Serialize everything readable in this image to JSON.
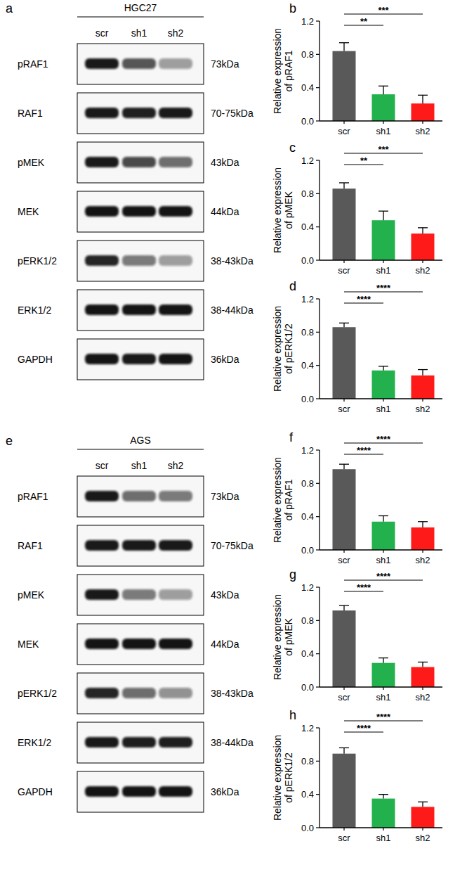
{
  "blots": [
    {
      "panel": "a",
      "cell_line": "HGC27",
      "lanes": [
        "scr",
        "sh1",
        "sh2"
      ],
      "rows": [
        {
          "protein": "pRAF1",
          "size": "73kDa",
          "intensity": [
            0.95,
            0.7,
            0.4
          ]
        },
        {
          "protein": "RAF1",
          "size": "70-75kDa",
          "intensity": [
            0.95,
            0.92,
            0.95
          ]
        },
        {
          "protein": "pMEK",
          "size": "43kDa",
          "intensity": [
            0.95,
            0.75,
            0.6
          ]
        },
        {
          "protein": "MEK",
          "size": "44kDa",
          "intensity": [
            0.97,
            0.97,
            0.97
          ]
        },
        {
          "protein": "pERK1/2",
          "size": "38-43kDa",
          "intensity": [
            0.9,
            0.55,
            0.4
          ]
        },
        {
          "protein": "ERK1/2",
          "size": "38-44kDa",
          "intensity": [
            0.97,
            0.97,
            0.97
          ]
        },
        {
          "protein": "GAPDH",
          "size": "36kDa",
          "intensity": [
            0.97,
            0.95,
            0.97
          ]
        }
      ]
    },
    {
      "panel": "e",
      "cell_line": "AGS",
      "lanes": [
        "scr",
        "sh1",
        "sh2"
      ],
      "rows": [
        {
          "protein": "pRAF1",
          "size": "73kDa",
          "intensity": [
            0.95,
            0.6,
            0.55
          ]
        },
        {
          "protein": "RAF1",
          "size": "70-75kDa",
          "intensity": [
            0.95,
            0.95,
            0.95
          ]
        },
        {
          "protein": "pMEK",
          "size": "43kDa",
          "intensity": [
            0.95,
            0.55,
            0.4
          ]
        },
        {
          "protein": "MEK",
          "size": "44kDa",
          "intensity": [
            0.97,
            0.97,
            0.97
          ]
        },
        {
          "protein": "pERK1/2",
          "size": "38-43kDa",
          "intensity": [
            0.9,
            0.6,
            0.45
          ]
        },
        {
          "protein": "ERK1/2",
          "size": "38-44kDa",
          "intensity": [
            0.95,
            0.93,
            0.93
          ]
        },
        {
          "protein": "GAPDH",
          "size": "36kDa",
          "intensity": [
            0.97,
            0.97,
            0.97
          ]
        }
      ]
    }
  ],
  "chart_data": [
    {
      "type": "bar",
      "panel": "b",
      "y_label": [
        "Relative expression",
        "of pRAF1"
      ],
      "categories": [
        "scr",
        "sh1",
        "sh2"
      ],
      "values": [
        0.84,
        0.32,
        0.21
      ],
      "errors": [
        0.1,
        0.1,
        0.1
      ],
      "colors": [
        "#595959",
        "#22b14c",
        "#ff1a1a"
      ],
      "ylim": [
        0,
        1.2
      ],
      "yticks": [
        {
          "value": 0,
          "label": "0.0"
        },
        0.4,
        0.8,
        1.2
      ],
      "annotations": [
        {
          "from": "scr",
          "to": "sh1",
          "text": "**"
        },
        {
          "from": "scr",
          "to": "sh2",
          "text": "***"
        }
      ]
    },
    {
      "type": "bar",
      "panel": "c",
      "y_label": [
        "Relative expression",
        "of pMEK"
      ],
      "categories": [
        "scr",
        "sh1",
        "sh2"
      ],
      "values": [
        0.86,
        0.48,
        0.32
      ],
      "errors": [
        0.07,
        0.11,
        0.07
      ],
      "colors": [
        "#595959",
        "#22b14c",
        "#ff1a1a"
      ],
      "ylim": [
        0,
        1.2
      ],
      "yticks": [
        {
          "value": 0,
          "label": "0.0"
        },
        0.4,
        0.8,
        1.2
      ],
      "annotations": [
        {
          "from": "scr",
          "to": "sh1",
          "text": "**"
        },
        {
          "from": "scr",
          "to": "sh2",
          "text": "***"
        }
      ]
    },
    {
      "type": "bar",
      "panel": "d",
      "y_label": [
        "Relative expression",
        "of pERK1/2"
      ],
      "categories": [
        "scr",
        "sh1",
        "sh2"
      ],
      "values": [
        0.86,
        0.34,
        0.28
      ],
      "errors": [
        0.05,
        0.05,
        0.07
      ],
      "colors": [
        "#595959",
        "#22b14c",
        "#ff1a1a"
      ],
      "ylim": [
        0,
        1.2
      ],
      "yticks": [
        {
          "value": 0,
          "label": "0.0"
        },
        0.4,
        0.8,
        1.2
      ],
      "annotations": [
        {
          "from": "scr",
          "to": "sh1",
          "text": "****"
        },
        {
          "from": "scr",
          "to": "sh2",
          "text": "****"
        }
      ]
    },
    {
      "type": "bar",
      "panel": "f",
      "y_label": [
        "Relative expression",
        "of pRAF1"
      ],
      "categories": [
        "scr",
        "sh1",
        "sh2"
      ],
      "values": [
        0.97,
        0.34,
        0.27
      ],
      "errors": [
        0.06,
        0.07,
        0.07
      ],
      "colors": [
        "#595959",
        "#22b14c",
        "#ff1a1a"
      ],
      "ylim": [
        0,
        1.2
      ],
      "yticks": [
        {
          "value": 0,
          "label": "0.0"
        },
        0.4,
        0.8,
        1.2
      ],
      "annotations": [
        {
          "from": "scr",
          "to": "sh1",
          "text": "****"
        },
        {
          "from": "scr",
          "to": "sh2",
          "text": "****"
        }
      ]
    },
    {
      "type": "bar",
      "panel": "g",
      "y_label": [
        "Relative expression",
        "of pMEK"
      ],
      "categories": [
        "scr",
        "sh1",
        "sh2"
      ],
      "values": [
        0.92,
        0.29,
        0.24
      ],
      "errors": [
        0.06,
        0.06,
        0.06
      ],
      "colors": [
        "#595959",
        "#22b14c",
        "#ff1a1a"
      ],
      "ylim": [
        0,
        1.2
      ],
      "yticks": [
        {
          "value": 0,
          "label": "0.0"
        },
        0.4,
        0.8,
        1.2
      ],
      "annotations": [
        {
          "from": "scr",
          "to": "sh1",
          "text": "****"
        },
        {
          "from": "scr",
          "to": "sh2",
          "text": "****"
        }
      ]
    },
    {
      "type": "bar",
      "panel": "h",
      "y_label": [
        "Relative expression",
        "of pERK1/2"
      ],
      "categories": [
        "scr",
        "sh1",
        "sh2"
      ],
      "values": [
        0.89,
        0.35,
        0.25
      ],
      "errors": [
        0.07,
        0.05,
        0.06
      ],
      "colors": [
        "#595959",
        "#22b14c",
        "#ff1a1a"
      ],
      "ylim": [
        0,
        1.2
      ],
      "yticks": [
        {
          "value": 0,
          "label": "0.0"
        },
        0.4,
        0.8,
        1.2
      ],
      "annotations": [
        {
          "from": "scr",
          "to": "sh1",
          "text": "****"
        },
        {
          "from": "scr",
          "to": "sh2",
          "text": "****"
        }
      ]
    }
  ]
}
